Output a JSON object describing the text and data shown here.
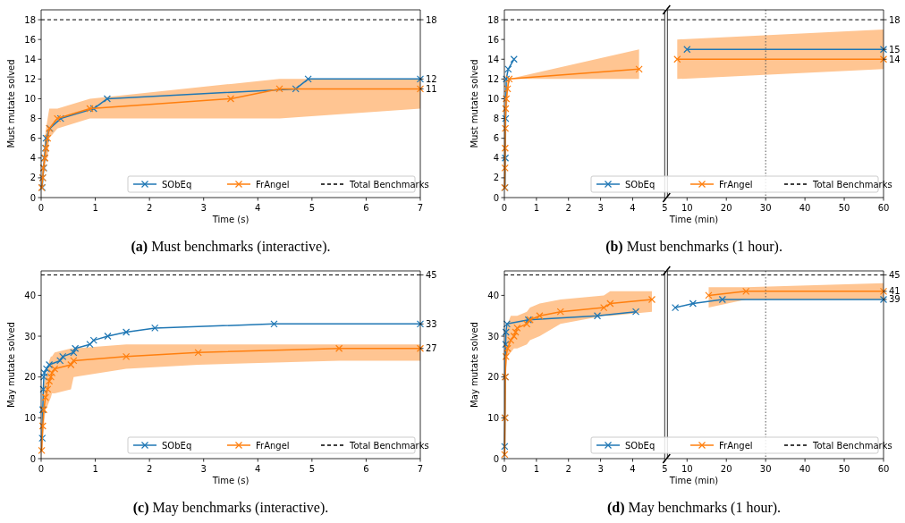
{
  "chart_data": [
    {
      "type": "line",
      "title": "(a) Must benchmarks (interactive).",
      "xlabel": "Time (s)",
      "ylabel": "Must mutate solved",
      "xlim": [
        0,
        7
      ],
      "xticks": [
        0,
        1,
        2,
        3,
        4,
        5,
        6,
        7
      ],
      "ylim": [
        0,
        19
      ],
      "yticks": [
        0,
        2,
        4,
        6,
        8,
        10,
        12,
        14,
        16,
        18
      ],
      "y2lim": [
        0,
        19
      ],
      "y2ticks": [
        11,
        12,
        18
      ],
      "marker": "cross",
      "legend": "lower right",
      "ref_lines": [
        {
          "axis": "y",
          "value": 18,
          "label": "Total Benchmarks",
          "line_style": "dashed",
          "color": "#000000"
        }
      ],
      "series": [
        {
          "name": "SObEq",
          "color": "#1f77b4",
          "x": [
            0.02,
            0.03,
            0.05,
            0.06,
            0.08,
            0.09,
            0.16,
            0.36,
            0.97,
            1.22,
            4.7,
            4.93,
            7
          ],
          "values": [
            1,
            2,
            3,
            4,
            5,
            6,
            7,
            8,
            9,
            10,
            11,
            12,
            12
          ]
        },
        {
          "name": "FrAngel",
          "color": "#ff7f0e",
          "x": [
            0.01,
            0.03,
            0.04,
            0.07,
            0.09,
            0.12,
            0.15,
            0.3,
            0.9,
            3.5,
            4.4,
            7
          ],
          "values": [
            1,
            2,
            3,
            4,
            5,
            6,
            7,
            8,
            9,
            10,
            11,
            11
          ],
          "lower": [
            1,
            1,
            2,
            3,
            4,
            4,
            6,
            7,
            8,
            8,
            8,
            9
          ],
          "upper": [
            1,
            3,
            4,
            6,
            7,
            8,
            9,
            9,
            10,
            11.5,
            12,
            12
          ]
        }
      ]
    },
    {
      "type": "line",
      "title": "(b) Must benchmarks (1 hour).",
      "ylabel": "Must mutate solved",
      "xlim": [
        0,
        5
      ],
      "xticks": [
        0,
        1,
        2,
        3,
        4,
        5
      ],
      "ylim": [
        0,
        19
      ],
      "yticks": [
        0,
        2,
        4,
        6,
        8,
        10,
        12,
        14,
        16,
        18
      ],
      "marker": "cross",
      "ref_lines": [
        {
          "axis": "y",
          "value": 18,
          "line_style": "dashed",
          "color": "#000000"
        }
      ],
      "series": [
        {
          "color": "#1f77b4",
          "x": [
            0.02,
            0.03,
            0.04,
            0.06,
            0.12,
            0.3
          ],
          "values": [
            1,
            4,
            8,
            12,
            13,
            14
          ]
        },
        {
          "color": "#ff7f0e",
          "x": [
            0.01,
            0.02,
            0.025,
            0.03,
            0.04,
            0.06,
            0.1,
            0.15,
            4.2
          ],
          "values": [
            1,
            3,
            5,
            7,
            9,
            10,
            11,
            12,
            13
          ],
          "lower": [
            1,
            1,
            2,
            4,
            6,
            8,
            10,
            12,
            12
          ],
          "upper": [
            1,
            4,
            6,
            8,
            10,
            11,
            12,
            12,
            15
          ]
        }
      ]
    },
    {
      "type": "line",
      "xlabel": "Time (min)",
      "xlim": [
        5,
        60
      ],
      "xticks": [
        10,
        20,
        30,
        40,
        50,
        60
      ],
      "y2lim": [
        0,
        19
      ],
      "y2ticks": [
        14,
        15,
        18
      ],
      "marker": "cross",
      "legend": "lower left",
      "ref_lines": [
        {
          "axis": "y2",
          "value": 18,
          "label": "Total Benchmarks",
          "line_style": "dashed",
          "color": "#000000"
        },
        {
          "axis": "x",
          "value": 30,
          "line_style": "dotted",
          "color": "#555555"
        }
      ],
      "series": [
        {
          "name": "SObEq",
          "color": "#1f77b4",
          "axis": "y2",
          "x": [
            10,
            60
          ],
          "values": [
            15,
            15
          ]
        },
        {
          "name": "FrAngel",
          "color": "#ff7f0e",
          "axis": "y2",
          "x": [
            7.5,
            60
          ],
          "values": [
            14,
            14
          ],
          "lower": [
            12,
            13
          ],
          "upper": [
            16,
            17
          ]
        }
      ]
    },
    {
      "type": "line",
      "title": "(c) May benchmarks (interactive).",
      "xlabel": "Time (s)",
      "ylabel": "May mutate solved",
      "xlim": [
        0,
        7
      ],
      "xticks": [
        0,
        1,
        2,
        3,
        4,
        5,
        6,
        7
      ],
      "ylim": [
        0,
        46
      ],
      "yticks": [
        0,
        10,
        20,
        30,
        40
      ],
      "y2lim": [
        0,
        46
      ],
      "y2ticks": [
        27,
        33,
        45
      ],
      "marker": "cross",
      "legend": "lower right",
      "ref_lines": [
        {
          "axis": "y",
          "value": 45,
          "label": "Total Benchmarks",
          "line_style": "dashed",
          "color": "#000000"
        }
      ],
      "series": [
        {
          "name": "SObEq",
          "color": "#1f77b4",
          "x": [
            0.02,
            0.03,
            0.04,
            0.05,
            0.06,
            0.1,
            0.15,
            0.35,
            0.4,
            0.6,
            0.63,
            0.9,
            0.97,
            1.23,
            1.57,
            2.1,
            4.3,
            7
          ],
          "values": [
            5,
            12,
            17,
            20,
            21,
            22,
            23,
            24,
            25,
            26,
            27,
            28,
            29,
            30,
            31,
            32,
            33,
            33
          ]
        },
        {
          "name": "FrAngel",
          "color": "#ff7f0e",
          "x": [
            0.01,
            0.03,
            0.05,
            0.08,
            0.12,
            0.15,
            0.18,
            0.2,
            0.25,
            0.55,
            0.6,
            1.57,
            2.9,
            5.5,
            7
          ],
          "values": [
            2,
            8,
            12,
            15,
            17,
            19,
            20,
            21,
            22,
            23,
            24,
            25,
            26,
            27,
            27
          ],
          "lower": [
            0,
            5,
            8,
            12,
            13,
            14,
            15,
            16,
            16,
            17,
            20,
            22,
            23,
            24,
            24
          ],
          "upper": [
            5,
            12,
            18,
            20,
            22,
            24,
            25,
            25,
            26,
            27,
            27,
            28,
            28,
            28,
            28
          ]
        }
      ]
    },
    {
      "type": "line",
      "title": "(d) May benchmarks (1 hour).",
      "ylabel": "May mutate solved",
      "xlim": [
        0,
        5
      ],
      "xticks": [
        0,
        1,
        2,
        3,
        4,
        5
      ],
      "ylim": [
        0,
        46
      ],
      "yticks": [
        0,
        10,
        20,
        30,
        40
      ],
      "marker": "cross",
      "ref_lines": [
        {
          "axis": "y",
          "value": 45,
          "line_style": "dashed",
          "color": "#000000"
        }
      ],
      "series": [
        {
          "color": "#1f77b4",
          "x": [
            0.01,
            0.02,
            0.03,
            0.04,
            0.05,
            0.08,
            0.75,
            2.9,
            4.1
          ],
          "values": [
            3,
            10,
            20,
            28,
            31,
            33,
            34,
            35,
            36
          ]
        },
        {
          "color": "#ff7f0e",
          "x": [
            0.01,
            0.02,
            0.03,
            0.05,
            0.1,
            0.2,
            0.3,
            0.35,
            0.4,
            0.7,
            0.8,
            1.1,
            1.75,
            3.1,
            3.3,
            4.6
          ],
          "values": [
            1,
            10,
            20,
            25,
            27,
            29,
            30,
            31,
            32,
            33,
            34,
            35,
            36,
            37,
            38,
            39
          ],
          "lower": [
            0,
            5,
            15,
            22,
            25,
            26,
            27,
            27,
            27,
            28,
            29,
            30,
            33,
            35,
            35,
            36
          ],
          "upper": [
            5,
            20,
            26,
            30,
            33,
            35,
            35,
            35,
            35,
            36,
            37,
            38,
            39,
            40,
            41,
            41
          ]
        }
      ]
    },
    {
      "type": "line",
      "xlabel": "Time (min)",
      "xlim": [
        5,
        60
      ],
      "xticks": [
        10,
        20,
        30,
        40,
        50,
        60
      ],
      "y2lim": [
        0,
        46
      ],
      "y2ticks": [
        39,
        41,
        45
      ],
      "marker": "cross",
      "legend": "lower left",
      "ref_lines": [
        {
          "axis": "y2",
          "value": 45,
          "label": "Total Benchmarks",
          "line_style": "dashed",
          "color": "#000000"
        },
        {
          "axis": "x",
          "value": 30,
          "line_style": "dotted",
          "color": "#555555"
        }
      ],
      "series": [
        {
          "name": "SObEq",
          "color": "#1f77b4",
          "axis": "y2",
          "x": [
            7,
            11.5,
            19,
            60
          ],
          "values": [
            37,
            38,
            39,
            39
          ]
        },
        {
          "name": "FrAngel",
          "color": "#ff7f0e",
          "axis": "y2",
          "x": [
            15.5,
            25,
            60
          ],
          "values": [
            40,
            41,
            41
          ],
          "lower": [
            37,
            39,
            39
          ],
          "upper": [
            42,
            42,
            43
          ]
        }
      ]
    }
  ]
}
